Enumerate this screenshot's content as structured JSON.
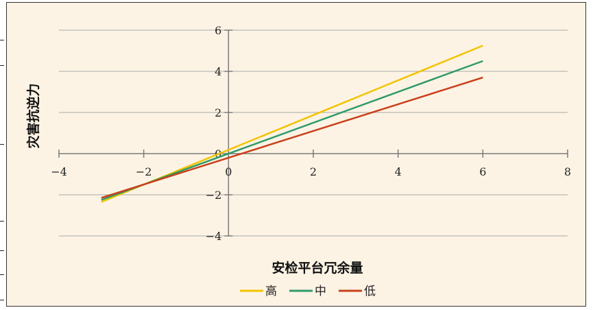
{
  "chart_data": {
    "type": "line",
    "title": "",
    "xlabel": "安检平台冗余量",
    "ylabel": "灾害抗逆力",
    "xlim": [
      -4,
      8
    ],
    "ylim": [
      -4,
      6
    ],
    "xticks": [
      -4,
      -2,
      0,
      2,
      4,
      6,
      8
    ],
    "yticks": [
      -4,
      -2,
      0,
      2,
      4,
      6
    ],
    "grid": true,
    "legend_position": "bottom",
    "series": [
      {
        "name": "高",
        "color": "#f2c300",
        "x": [
          -3,
          6
        ],
        "y": [
          -2.35,
          5.25
        ]
      },
      {
        "name": "中",
        "color": "#2e9a6a",
        "x": [
          -3,
          6
        ],
        "y": [
          -2.25,
          4.5
        ]
      },
      {
        "name": "低",
        "color": "#c8401c",
        "x": [
          -3,
          6
        ],
        "y": [
          -2.15,
          3.7
        ]
      }
    ]
  }
}
